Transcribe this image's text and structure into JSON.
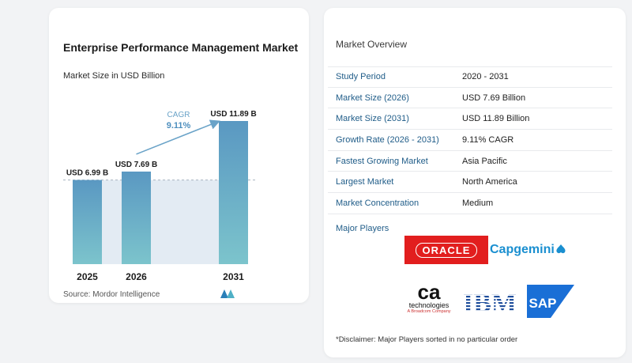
{
  "chart_data": {
    "type": "bar",
    "title": "Enterprise Performance Management Market",
    "subtitle": "Market Size in USD Billion",
    "categories": [
      "2025",
      "2026",
      "2031"
    ],
    "values": [
      6.99,
      7.69,
      11.89
    ],
    "value_labels": [
      "USD 6.99 B",
      "USD 7.69 B",
      "USD 11.89 B"
    ],
    "annotation": {
      "label": "CAGR",
      "value": "9.11%"
    },
    "ylim": [
      0,
      11.89
    ],
    "grid": false,
    "bar_color": "#5a98c2"
  },
  "source": "Source:  Mordor Intelligence",
  "overview": {
    "title": "Market Overview",
    "rows": [
      {
        "label": "Study Period",
        "value": "2020 - 2031"
      },
      {
        "label": "Market Size (2026)",
        "value": "USD 7.69 Billion"
      },
      {
        "label": "Market Size (2031)",
        "value": "USD 11.89 Billion"
      },
      {
        "label": "Growth Rate (2026 - 2031)",
        "value": "9.11% CAGR"
      },
      {
        "label": "Fastest Growing Market",
        "value": "Asia Pacific"
      },
      {
        "label": "Largest Market",
        "value": "North America"
      },
      {
        "label": "Market Concentration",
        "value": "Medium"
      }
    ]
  },
  "players": {
    "label": "Major Players",
    "oracle": "ORACLE",
    "capgemini": "Capgemini",
    "ca_big": "ca",
    "ca_small": "technologies",
    "ca_tiny": "A Broadcom Company",
    "ibm": "IBM",
    "sap": "SAP"
  },
  "disclaimer": "*Disclaimer: Major Players sorted in no particular order",
  "colors": {
    "label_blue": "#1f5c88",
    "oracle_red": "#e21e1e",
    "capgemini_blue": "#1a8fd0",
    "sap_blue": "#1a6fd6"
  }
}
